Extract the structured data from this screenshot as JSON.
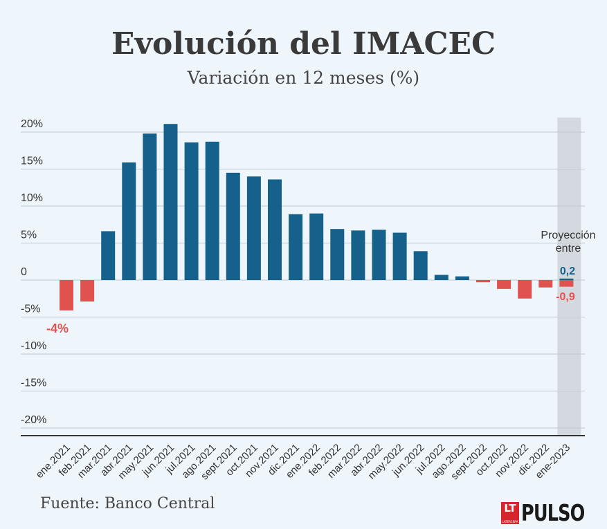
{
  "header": {
    "title": "Evolución del IMACEC",
    "subtitle": "Variación en 12 meses (%)"
  },
  "footer": {
    "source": "Fuente: Banco Central",
    "logo_mark": "LT",
    "logo_small": "LATERCERA",
    "logo_text": "PULSO"
  },
  "colors": {
    "positive": "#15618c",
    "negative": "#e0524f",
    "projection_band": "#d3d9de",
    "grid": "#bfc7cf",
    "text": "#333333"
  },
  "chart_data": {
    "type": "bar",
    "title": "Evolución del IMACEC",
    "subtitle": "Variación en 12 meses (%)",
    "categories": [
      "ene.2021",
      "feb.2021",
      "mar.2021",
      "abr.2021",
      "may.2021",
      "jun.2021",
      "jul.2021",
      "ago.2021",
      "sept.2021",
      "oct.2021",
      "nov.2021",
      "dic.2021",
      "ene.2022",
      "feb.2022",
      "mar.2022",
      "abr.2022",
      "may.2022",
      "jun.2022",
      "jul.2022",
      "ago.2022",
      "sept.2022",
      "oct.2022",
      "nov.2022",
      "dic.2022"
    ],
    "values": [
      -4.1,
      -2.9,
      6.6,
      15.9,
      19.8,
      21.1,
      18.6,
      18.7,
      14.5,
      14.0,
      13.6,
      8.9,
      9.0,
      6.9,
      6.7,
      6.8,
      6.4,
      3.9,
      0.7,
      0.5,
      -0.3,
      -1.2,
      -2.5,
      -1.0
    ],
    "projection": {
      "category": "ene-2023",
      "label": "Proyección entre",
      "high": 0.2,
      "low": -0.9,
      "high_label": "0,2",
      "low_label": "-0,9"
    },
    "annotations": [
      {
        "category": "ene.2021",
        "text": "-4%"
      }
    ],
    "y_ticks": [
      20,
      15,
      10,
      5,
      0,
      -5,
      -10,
      -15,
      -20
    ],
    "y_tick_labels": [
      "20%",
      "15%",
      "10%",
      "5%",
      "0",
      "-5%",
      "-10%",
      "-15%",
      "-20%"
    ],
    "ylim": [
      -20.5,
      21.1
    ],
    "grid": true,
    "legend": "none"
  }
}
